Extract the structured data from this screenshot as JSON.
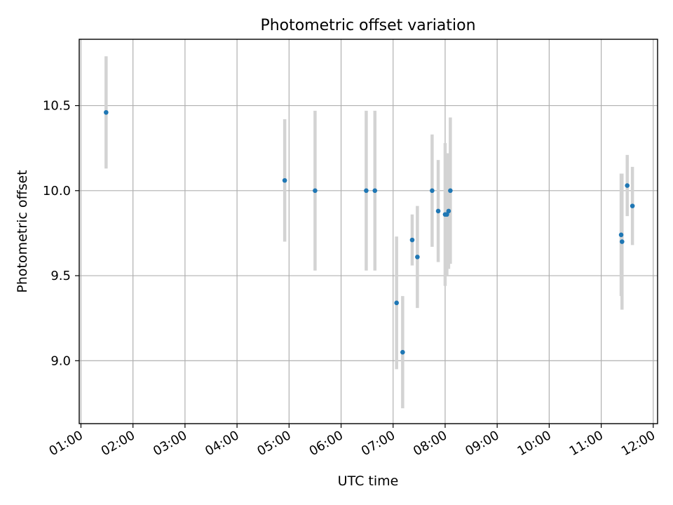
{
  "chart_data": {
    "type": "scatter",
    "title": "Photometric offset variation",
    "xlabel": "UTC time",
    "ylabel": "Photometric offset",
    "x_axis": "time",
    "xlim": [
      "00:58",
      "12:05"
    ],
    "ylim": [
      8.63,
      10.89
    ],
    "x_ticks": [
      "01:00",
      "02:00",
      "03:00",
      "04:00",
      "05:00",
      "06:00",
      "07:00",
      "08:00",
      "09:00",
      "10:00",
      "11:00",
      "12:00"
    ],
    "y_ticks": [
      9.0,
      9.5,
      10.0,
      10.5
    ],
    "y_tick_labels": [
      "9.0",
      "9.5",
      "10.0",
      "10.5"
    ],
    "grid": true,
    "marker_color": "#1f77b4",
    "error_color": "#d3d3d3",
    "series": [
      {
        "points": [
          {
            "x": "01:29",
            "y": 10.46,
            "yerr": 0.33
          },
          {
            "x": "04:55",
            "y": 10.06,
            "yerr": 0.36
          },
          {
            "x": "05:30",
            "y": 10.0,
            "yerr": 0.47
          },
          {
            "x": "06:29",
            "y": 10.0,
            "yerr": 0.47
          },
          {
            "x": "06:39",
            "y": 10.0,
            "yerr": 0.47
          },
          {
            "x": "07:04",
            "y": 9.34,
            "yerr": 0.39
          },
          {
            "x": "07:11",
            "y": 9.05,
            "yerr": 0.33
          },
          {
            "x": "07:22",
            "y": 9.71,
            "yerr": 0.15
          },
          {
            "x": "07:28",
            "y": 9.61,
            "yerr": 0.3
          },
          {
            "x": "07:45",
            "y": 10.0,
            "yerr": 0.33
          },
          {
            "x": "07:52",
            "y": 9.88,
            "yerr": 0.3
          },
          {
            "x": "08:00",
            "y": 9.86,
            "yerr": 0.42
          },
          {
            "x": "08:02",
            "y": 9.86,
            "yerr": 0.36
          },
          {
            "x": "08:04",
            "y": 9.88,
            "yerr": 0.34
          },
          {
            "x": "08:06",
            "y": 10.0,
            "yerr": 0.43
          },
          {
            "x": "11:23",
            "y": 9.74,
            "yerr": 0.36
          },
          {
            "x": "11:24",
            "y": 9.7,
            "yerr": 0.4
          },
          {
            "x": "11:30",
            "y": 10.03,
            "yerr": 0.18
          },
          {
            "x": "11:36",
            "y": 9.91,
            "yerr": 0.23
          }
        ]
      }
    ]
  }
}
